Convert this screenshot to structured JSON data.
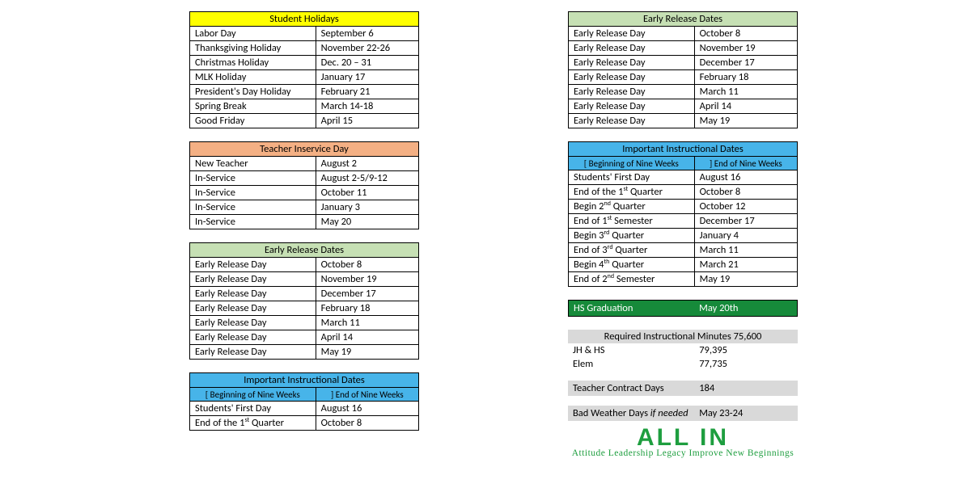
{
  "colors": {
    "yellow": "#ffff00",
    "peach": "#f4b084",
    "sage": "#c6e0b4",
    "sky": "#47b4e9",
    "forest": "#168a3a",
    "white_text": "#ffffff",
    "grey": "#d9d9d9",
    "logo_green": "#1e9e3f"
  },
  "col_left": {
    "student_holidays": {
      "title": "Student Holidays",
      "rows": [
        [
          "Labor Day",
          "September 6"
        ],
        [
          "Thanksgiving Holiday",
          "November 22-26"
        ],
        [
          "Christmas Holiday",
          "Dec. 20 – 31"
        ],
        [
          "MLK Holiday",
          "January 17"
        ],
        [
          "President's Day Holiday",
          "February 21"
        ],
        [
          "Spring Break",
          "March 14-18"
        ],
        [
          "Good Friday",
          "April 15"
        ]
      ]
    },
    "teacher_inservice": {
      "title": "Teacher Inservice Day",
      "rows": [
        [
          "New Teacher",
          "August 2"
        ],
        [
          "In-Service",
          "August 2-5/9-12"
        ],
        [
          "In-Service",
          "October 11"
        ],
        [
          "In-Service",
          "January 3"
        ],
        [
          "In-Service",
          "May 20"
        ]
      ]
    },
    "early_release": {
      "title": "Early Release Dates",
      "rows": [
        [
          "Early Release Day",
          "October 8"
        ],
        [
          "Early Release Day",
          "November 19"
        ],
        [
          "Early Release Day",
          "December 17"
        ],
        [
          "Early Release Day",
          "February 18"
        ],
        [
          "Early Release Day",
          "March 11"
        ],
        [
          "Early Release Day",
          "April 14"
        ],
        [
          "Early Release Day",
          "May 19"
        ]
      ]
    },
    "instructional_partial": {
      "title": "Important Instructional Dates",
      "sub_left": "[  Beginning of Nine Weeks",
      "sub_right": "]  End of Nine Weeks",
      "rows": [
        [
          "Students' First Day",
          "August 16",
          ""
        ],
        [
          "End of the 1",
          "October  8",
          "st"
        ]
      ]
    }
  },
  "col_right": {
    "early_release": {
      "title": "Early Release Dates",
      "rows": [
        [
          "Early Release Day",
          "October 8"
        ],
        [
          "Early Release Day",
          "November 19"
        ],
        [
          "Early Release Day",
          "December 17"
        ],
        [
          "Early Release Day",
          "February 18"
        ],
        [
          "Early Release Day",
          "March 11"
        ],
        [
          "Early Release Day",
          "April 14"
        ],
        [
          "Early Release Day",
          "May 19"
        ]
      ]
    },
    "instructional": {
      "title": "Important Instructional Dates",
      "sub_left": "[  Beginning of Nine Weeks",
      "sub_right": "]  End of Nine Weeks",
      "rows": [
        [
          "Students' First Day",
          "August 16",
          ""
        ],
        [
          "End of the 1",
          " Quarter",
          "October  8",
          "st"
        ],
        [
          "Begin 2",
          " Quarter",
          "October 12",
          "nd"
        ],
        [
          "End of 1",
          " Semester",
          "December 17",
          "st"
        ],
        [
          "Begin 3",
          " Quarter",
          "January 4",
          "rd"
        ],
        [
          "End of 3",
          " Quarter",
          "March 11",
          "rd"
        ],
        [
          "Begin 4",
          " Quarter",
          "March 21",
          "th"
        ],
        [
          "End of 2",
          " Semester",
          "May 19",
          "nd"
        ]
      ]
    },
    "graduation": {
      "label": "HS Graduation",
      "value": "May 20th"
    },
    "minutes": {
      "title": "Required Instructional Minutes 75,600",
      "rows": [
        [
          "JH & HS",
          "79,395"
        ],
        [
          "Elem",
          "77,735"
        ]
      ]
    },
    "contract": {
      "label": "Teacher Contract Days",
      "value": "184"
    },
    "bad_weather": {
      "label_a": "Bad Weather Days ",
      "label_b": "if needed",
      "value": "May 23-24"
    },
    "motto": {
      "big": "ALL IN",
      "small": "Attitude  Leadership  Legacy  Improve  New Beginnings"
    }
  }
}
